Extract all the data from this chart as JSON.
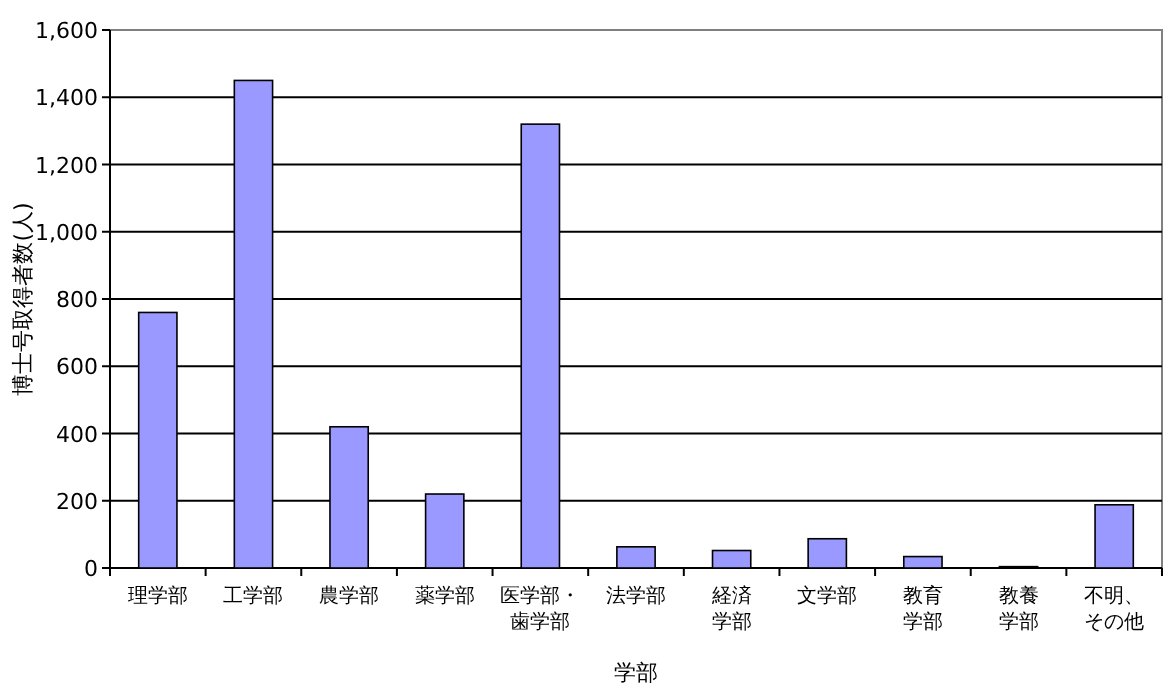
{
  "chart_data": {
    "type": "bar",
    "xlabel": "学部",
    "ylabel": "博士号取得者数(人)",
    "categories": [
      "理学部",
      "工学部",
      "農学部",
      "薬学部",
      "医学部・歯学部",
      "法学部",
      "経済学部",
      "文学部",
      "教育学部",
      "教養学部",
      "不明、その他"
    ],
    "values": [
      760,
      1450,
      420,
      220,
      1320,
      63,
      52,
      87,
      34,
      4,
      188
    ],
    "color": "#9999ff",
    "ylim": [
      0,
      1600
    ],
    "yticks": [
      {
        "value": 0,
        "label": "0"
      },
      {
        "value": 200,
        "label": "200"
      },
      {
        "value": 400,
        "label": "400"
      },
      {
        "value": 600,
        "label": "600"
      },
      {
        "value": 800,
        "label": "800"
      },
      {
        "value": 1000,
        "label": "1,000"
      },
      {
        "value": 1200,
        "label": "1,200"
      },
      {
        "value": 1400,
        "label": "1,400"
      },
      {
        "value": 1600,
        "label": "1,600"
      }
    ],
    "grid": "y"
  }
}
